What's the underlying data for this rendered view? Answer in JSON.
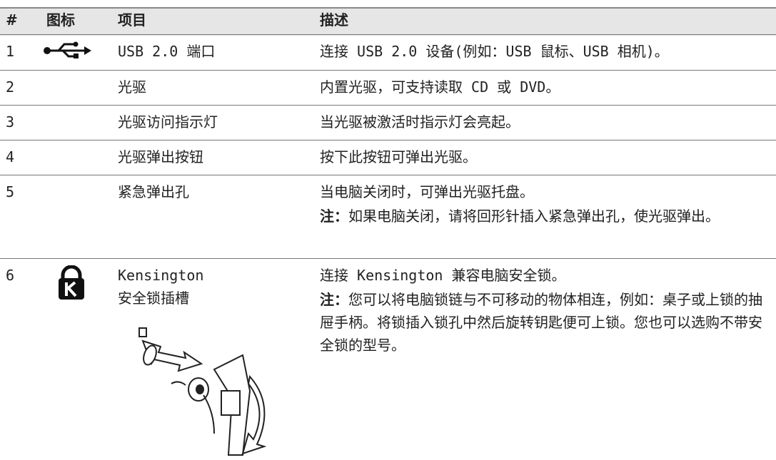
{
  "table": {
    "header": [
      "#",
      "图标",
      "项目",
      "描述"
    ],
    "rows": [
      {
        "number": "1",
        "item": [
          "USB 2.0 端口"
        ],
        "description": [
          "连接 USB 2.0 设备(例如：USB 鼠标、USB 相机)。"
        ]
      },
      {
        "number": "2",
        "item": [
          "光驱"
        ],
        "description": [
          "内置光驱，可支持读取 CD 或 DVD。"
        ]
      },
      {
        "number": "3",
        "item": [
          "光驱访问指示灯"
        ],
        "description": [
          "当光驱被激活时指示灯会亮起。"
        ]
      },
      {
        "number": "4",
        "item": [
          "光驱弹出按钮"
        ],
        "description": [
          "按下此按钮可弹出光驱。"
        ]
      },
      {
        "number": "5",
        "item": [
          "紧急弹出孔"
        ],
        "description": [
          "当电脑关闭时，可弹出光驱托盘。"
        ],
        "note": {
          "label": "注：",
          "text": "如果电脑关闭，请将回形针插入紧急弹出孔，使光驱弹出。"
        }
      },
      {
        "number": "6",
        "item": [
          "Kensington",
          "安全锁插槽"
        ],
        "description": [
          "连接 Kensington 兼容电脑安全锁。"
        ],
        "note": {
          "label": "注：",
          "text": "您可以将电脑锁链与不可移动的物体相连，例如：桌子或上锁的抽屉手柄。将锁插入锁孔中然后旋转钥匙便可上锁。您也可以选购不带安全锁的型号。"
        }
      }
    ]
  }
}
